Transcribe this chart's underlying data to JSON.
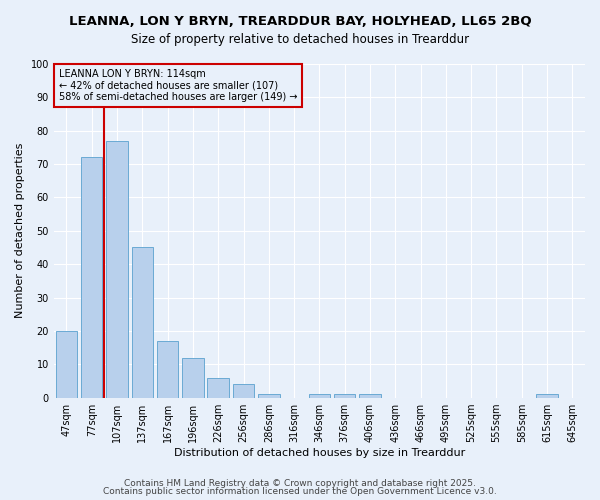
{
  "title_line1": "LEANNA, LON Y BRYN, TREARDDUR BAY, HOLYHEAD, LL65 2BQ",
  "title_line2": "Size of property relative to detached houses in Trearddur",
  "xlabel": "Distribution of detached houses by size in Trearddur",
  "ylabel": "Number of detached properties",
  "categories": [
    "47sqm",
    "77sqm",
    "107sqm",
    "137sqm",
    "167sqm",
    "196sqm",
    "226sqm",
    "256sqm",
    "286sqm",
    "316sqm",
    "346sqm",
    "376sqm",
    "406sqm",
    "436sqm",
    "466sqm",
    "495sqm",
    "525sqm",
    "555sqm",
    "585sqm",
    "615sqm",
    "645sqm"
  ],
  "values": [
    20,
    72,
    77,
    45,
    17,
    12,
    6,
    4,
    1,
    0,
    1,
    1,
    1,
    0,
    0,
    0,
    0,
    0,
    0,
    1,
    0
  ],
  "bar_color": "#b8d0ec",
  "bar_edge_color": "#6aaad4",
  "bar_width": 0.85,
  "vline_x": 1.5,
  "vline_color": "#cc0000",
  "annotation_text": "LEANNA LON Y BRYN: 114sqm\n← 42% of detached houses are smaller (107)\n58% of semi-detached houses are larger (149) →",
  "annotation_box_color": "#cc0000",
  "ylim": [
    0,
    100
  ],
  "yticks": [
    0,
    10,
    20,
    30,
    40,
    50,
    60,
    70,
    80,
    90,
    100
  ],
  "bg_color": "#e8f0fa",
  "grid_color": "#ffffff",
  "footer_line1": "Contains HM Land Registry data © Crown copyright and database right 2025.",
  "footer_line2": "Contains public sector information licensed under the Open Government Licence v3.0.",
  "title_fontsize": 9.5,
  "subtitle_fontsize": 8.5,
  "axis_label_fontsize": 8,
  "tick_fontsize": 7,
  "annotation_fontsize": 7,
  "footer_fontsize": 6.5
}
